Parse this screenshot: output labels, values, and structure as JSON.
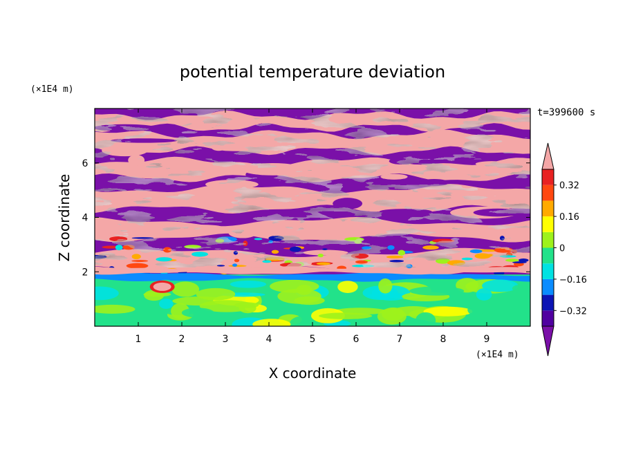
{
  "chart_data": {
    "type": "heatmap",
    "title": "potential temperature deviation",
    "xlabel": "X coordinate",
    "ylabel": "Z coordinate",
    "x_unit": "(×1E4 m)",
    "y_unit": "(×1E4 m)",
    "time_label": "t=399600 s",
    "xlim": [
      0,
      10
    ],
    "ylim": [
      0,
      8
    ],
    "x_ticks": [
      "1",
      "2",
      "3",
      "4",
      "5",
      "6",
      "7",
      "8",
      "9"
    ],
    "y_ticks": [
      "2",
      "4",
      "6"
    ],
    "x_tick_values": [
      1,
      2,
      3,
      4,
      5,
      6,
      7,
      8,
      9
    ],
    "y_tick_values": [
      2,
      4,
      6
    ],
    "colorbar": {
      "levels": [
        -0.4,
        -0.32,
        -0.24,
        -0.16,
        -0.08,
        0,
        0.08,
        0.16,
        0.24,
        0.32,
        0.4
      ],
      "labels": [
        "0.32",
        "0.16",
        "0",
        "−0.16",
        "−0.32"
      ],
      "label_values": [
        0.32,
        0.16,
        0,
        -0.16,
        -0.32
      ],
      "colors": [
        "#7a10a8",
        "#5000a0",
        "#0c14b4",
        "#0a8cff",
        "#00e2e2",
        "#22e28a",
        "#9ef21c",
        "#ffff00",
        "#ffaa00",
        "#ff4810",
        "#e82222",
        "#f4a7a7"
      ],
      "extend": "both"
    },
    "regions": {
      "z_0_to_1_8": "mostly near 0 (green / light green), with yellow patches",
      "z_1_8_to_2_2": "thin band of small positive/negative values (cyan, red)",
      "z_2_2_to_8": "alternating horizontal layers of > 0.4 (pink) and < -0.4 (purple)"
    }
  }
}
